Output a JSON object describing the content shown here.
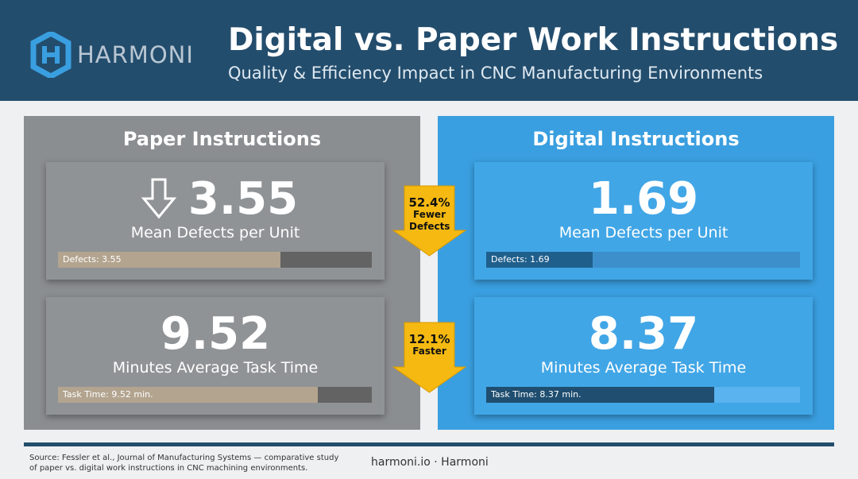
{
  "header": {
    "logo": "HARMONI",
    "title": "Digital vs. Paper Work Instructions",
    "subtitle": "Quality & Efficiency Impact in CNC Manufacturing Environments"
  },
  "scales": [
    {
      "xlim": [
        0,
        5
      ]
    },
    {
      "xlim": [
        0,
        11.5
      ]
    }
  ],
  "panels": [
    {
      "title": "Paper Instructions",
      "metrics": [
        {
          "value": 3.55,
          "label": "Mean Defects per Unit",
          "bar_label": "Defects: 3.55"
        },
        {
          "value": 9.52,
          "label": "Minutes Average Task Time",
          "bar_label": "Task Time: 9.52 min."
        }
      ]
    },
    {
      "title": "Digital Instructions",
      "metrics": [
        {
          "value": 1.69,
          "label": "Mean Defects per Unit",
          "bar_label": "Defects: 1.69"
        },
        {
          "value": 8.37,
          "label": "Minutes Average Task Time",
          "bar_label": "Task Time: 8.37 min."
        }
      ]
    }
  ],
  "callouts": [
    {
      "value": "52.4%",
      "text": "Fewer Defects"
    },
    {
      "value": "12.1%",
      "text": "Faster"
    }
  ],
  "footer": {
    "source": "Source: Fessler et al., Journal of Manufacturing Systems — comparative study of paper vs. digital work instructions in CNC machining environments.",
    "site": "harmoni.io · Harmoni"
  }
}
